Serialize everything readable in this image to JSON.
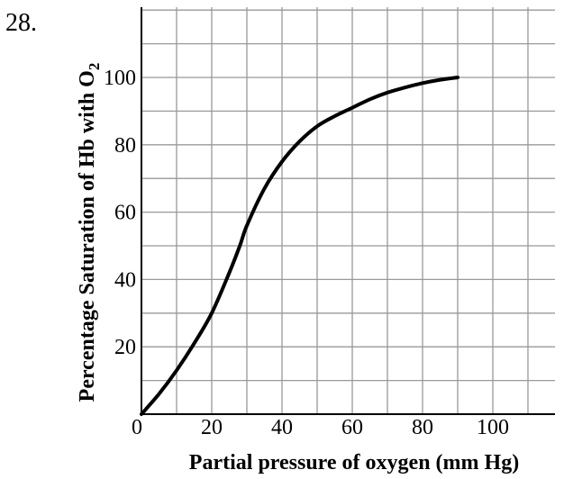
{
  "question_number": "28.",
  "chart_data": {
    "type": "line",
    "xlabel": "Partial pressure of oxygen (mm Hg)",
    "ylabel_main": "Percentage Saturation of Hb with O",
    "ylabel_subscript": "2",
    "xlim": [
      0,
      120
    ],
    "ylim": [
      0,
      120
    ],
    "grid": true,
    "x_ticks": [
      0,
      20,
      40,
      60,
      80,
      100
    ],
    "x_tick_labels": [
      "0",
      "20",
      "40",
      "60",
      "80",
      "100"
    ],
    "y_ticks": [
      20,
      40,
      60,
      80,
      100
    ],
    "y_tick_labels": [
      "20",
      "40",
      "60",
      "80",
      "100"
    ],
    "series": [
      {
        "x": [
          0,
          5,
          10,
          15,
          20,
          25,
          28,
          30,
          35,
          40,
          45,
          50,
          55,
          60,
          65,
          70,
          75,
          80,
          85,
          90
        ],
        "y": [
          0,
          6,
          13,
          21,
          30,
          42,
          50,
          56,
          67,
          75,
          81,
          85.5,
          88.5,
          91,
          93.5,
          95.5,
          97,
          98.3,
          99.3,
          100
        ]
      }
    ]
  }
}
